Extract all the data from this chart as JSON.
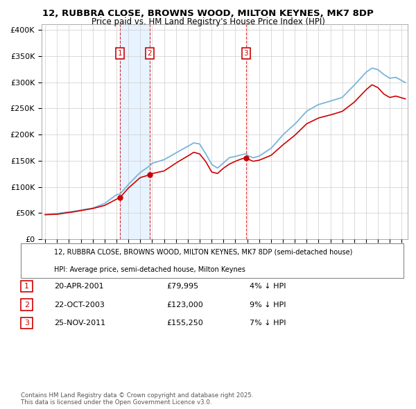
{
  "title_line1": "12, RUBBRA CLOSE, BROWNS WOOD, MILTON KEYNES, MK7 8DP",
  "title_line2": "Price paid vs. HM Land Registry's House Price Index (HPI)",
  "ylabel_ticks": [
    "£0",
    "£50K",
    "£100K",
    "£150K",
    "£200K",
    "£250K",
    "£300K",
    "£350K",
    "£400K"
  ],
  "ytick_values": [
    0,
    50000,
    100000,
    150000,
    200000,
    250000,
    300000,
    350000,
    400000
  ],
  "ylim": [
    0,
    410000
  ],
  "xlim_start": 1994.7,
  "xlim_end": 2025.5,
  "sales": [
    {
      "num": 1,
      "date": "20-APR-2001",
      "price": 79995,
      "year": 2001.3,
      "pct": "4%"
    },
    {
      "num": 2,
      "date": "22-OCT-2003",
      "price": 123000,
      "year": 2003.8,
      "pct": "9%"
    },
    {
      "num": 3,
      "date": "25-NOV-2011",
      "price": 155250,
      "year": 2011.9,
      "pct": "7%"
    }
  ],
  "hpi_color": "#7ab4d8",
  "price_color": "#cc0000",
  "dashed_color": "#cc0000",
  "legend_box_color": "#cc0000",
  "background_color": "#ffffff",
  "grid_color": "#cccccc",
  "shade_color": "#ddeeff",
  "footer_text": "Contains HM Land Registry data © Crown copyright and database right 2025.\nThis data is licensed under the Open Government Licence v3.0.",
  "legend_label_red": "12, RUBBRA CLOSE, BROWNS WOOD, MILTON KEYNES, MK7 8DP (semi-detached house)",
  "legend_label_blue": "HPI: Average price, semi-detached house, Milton Keynes"
}
